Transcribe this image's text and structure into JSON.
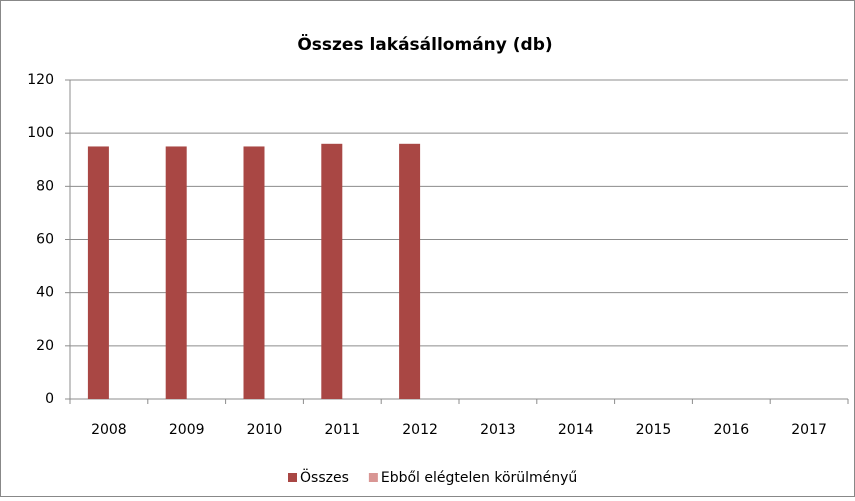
{
  "chart_data": {
    "type": "bar",
    "title": "Összes lakásállomány (db)",
    "categories": [
      "2008",
      "2009",
      "2010",
      "2011",
      "2012",
      "2013",
      "2014",
      "2015",
      "2016",
      "2017"
    ],
    "series": [
      {
        "name": "Összes",
        "color": "#a94744",
        "values": [
          95,
          95,
          95,
          96,
          96,
          null,
          null,
          null,
          null,
          null
        ]
      },
      {
        "name": "Ebből elégtelen körülményű",
        "color": "#d99694",
        "values": [
          null,
          null,
          null,
          null,
          null,
          null,
          null,
          null,
          null,
          null
        ]
      }
    ],
    "ylim": [
      0,
      120
    ],
    "yticks": [
      0,
      20,
      40,
      60,
      80,
      100,
      120
    ],
    "grid": true,
    "legend": "bottom"
  }
}
